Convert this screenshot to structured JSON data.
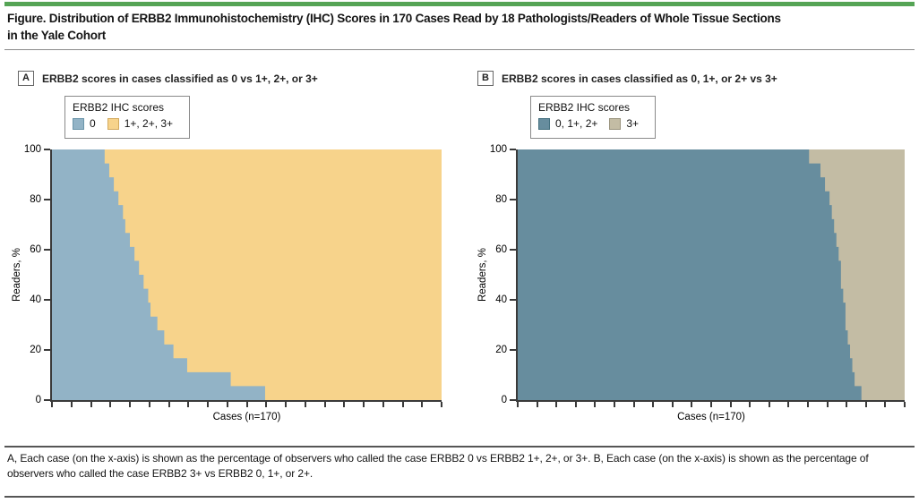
{
  "figure": {
    "title_line1": "Figure. Distribution of ERBB2 Immunohistochemistry (IHC) Scores in 170 Cases Read by 18 Pathologists/Readers of Whole Tissue Sections",
    "title_line2": "in the Yale Cohort",
    "caption": "A, Each case (on the x-axis) is shown as the percentage of observers who called the case ERBB2 0 vs ERBB2 1+, 2+, or 3+. B, Each case (on the x-axis) is shown as the percentage of observers who called the case ERBB2 3+ vs ERBB2 0, 1+, or 2+."
  },
  "colors": {
    "header_bar": "#55A455",
    "axis": "#3A3A3A",
    "title_rule": "#8A8A8A",
    "caption_rule": "#565656"
  },
  "chart_data": [
    {
      "panel": "A",
      "type": "area",
      "title": "ERBB2 scores in cases classified as 0 vs 1+, 2+, or 3+",
      "legend_title": "ERBB2 IHC scores",
      "legend_position": "top-left",
      "legend": [
        {
          "label": "0",
          "color": "#92B3C6",
          "border": "#6A94A9"
        },
        {
          "label": "1+, 2+, 3+",
          "color": "#F7D38B",
          "border": "#D3A95E"
        }
      ],
      "xlabel": "Cases (n=170)",
      "ylabel": "Readers, %",
      "ylim": [
        0,
        100
      ],
      "yticks": [
        0,
        20,
        40,
        60,
        80,
        100
      ],
      "x_tick_count": 21,
      "grid": false,
      "n_cases": 170,
      "n_readers": 18,
      "step_levels_pct": [
        100,
        94.4,
        88.9,
        83.3,
        77.8,
        72.2,
        66.7,
        61.1,
        55.6,
        50,
        44.4,
        38.9,
        33.3,
        27.8,
        22.2,
        16.7,
        11.1,
        5.6
      ],
      "level_end_case": [
        23,
        25,
        27,
        29,
        31,
        32,
        34,
        36,
        38,
        40,
        42,
        43,
        46,
        49,
        53,
        59,
        78,
        93
      ]
    },
    {
      "panel": "B",
      "type": "area",
      "title": "ERBB2 scores in cases classified as 0, 1+, or 2+ vs 3+",
      "legend_title": "ERBB2 IHC scores",
      "legend_position": "top-left",
      "legend": [
        {
          "label": "0, 1+, 2+",
          "color": "#678D9E",
          "border": "#44707F"
        },
        {
          "label": "3+",
          "color": "#C3BCA4",
          "border": "#9A947E"
        }
      ],
      "xlabel": "Cases (n=170)",
      "ylabel": "Readers, %",
      "ylim": [
        0,
        100
      ],
      "yticks": [
        0,
        20,
        40,
        60,
        80,
        100
      ],
      "x_tick_count": 21,
      "grid": false,
      "n_cases": 170,
      "n_readers": 18,
      "step_levels_pct": [
        100,
        94.4,
        88.9,
        83.3,
        77.8,
        72.2,
        66.7,
        61.1,
        55.6,
        50,
        44.4,
        38.9,
        33.3,
        27.8,
        22.2,
        16.7,
        11.1,
        5.6
      ],
      "level_end_case": [
        128,
        133,
        135,
        137,
        138,
        139,
        140,
        141,
        142,
        142,
        143,
        144,
        144,
        145,
        146,
        147,
        148,
        151
      ]
    }
  ]
}
